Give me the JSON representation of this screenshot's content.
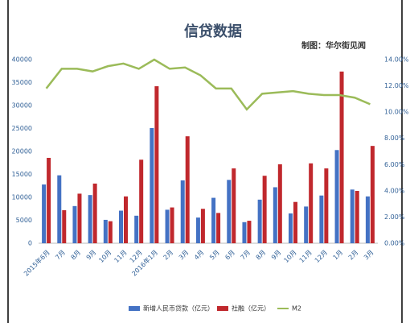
{
  "chart_data": {
    "type": "bar",
    "title": "信贷数据",
    "annotations": [
      "制图：华尔街见闻"
    ],
    "categories": [
      "2015年6月",
      "7月",
      "8月",
      "9月",
      "10月",
      "11月",
      "12月",
      "2016年1月",
      "2月",
      "3月",
      "4月",
      "5月",
      "6月",
      "7月",
      "8月",
      "9月",
      "10月",
      "11月",
      "12月",
      "1月",
      "2月",
      "3月"
    ],
    "series": [
      {
        "name": "新增人民币贷款（亿元）",
        "color": "#4472c4",
        "type": "bar",
        "values": [
          12800,
          14800,
          8100,
          10500,
          5100,
          7100,
          6000,
          25100,
          7300,
          13700,
          5600,
          9900,
          13800,
          4600,
          9500,
          12200,
          6500,
          8000,
          10400,
          20300,
          11700,
          10200
        ]
      },
      {
        "name": "社融（亿元）",
        "color": "#c0282d",
        "type": "bar",
        "values": [
          18600,
          7200,
          10800,
          13000,
          4800,
          10200,
          18200,
          34200,
          7800,
          23300,
          7500,
          6600,
          16300,
          4900,
          14700,
          17200,
          9000,
          17400,
          16300,
          37400,
          11400,
          21200
        ]
      },
      {
        "name": "M2",
        "color": "#9bbb59",
        "type": "line",
        "axis": "y2",
        "values": [
          11.8,
          13.3,
          13.3,
          13.1,
          13.5,
          13.7,
          13.3,
          14.0,
          13.3,
          13.4,
          12.8,
          11.8,
          11.8,
          10.2,
          11.4,
          11.5,
          11.6,
          11.4,
          11.3,
          11.3,
          11.1,
          10.6
        ]
      }
    ],
    "ylim": [
      0,
      40000
    ],
    "yticks": [
      0,
      5000,
      10000,
      15000,
      20000,
      25000,
      30000,
      35000,
      40000
    ],
    "y2lim": [
      0,
      14
    ],
    "y2ticks": [
      {
        "value": 0,
        "label": "0.00%"
      },
      {
        "value": 2,
        "label": "2.00%"
      },
      {
        "value": 4,
        "label": "4.00%"
      },
      {
        "value": 6,
        "label": "6.00%"
      },
      {
        "value": 8,
        "label": "8.00%"
      },
      {
        "value": 10,
        "label": "10.00%"
      },
      {
        "value": 12,
        "label": "12.00%"
      },
      {
        "value": 14,
        "label": "14.00%"
      }
    ],
    "grid": false,
    "legend": "bottom"
  }
}
